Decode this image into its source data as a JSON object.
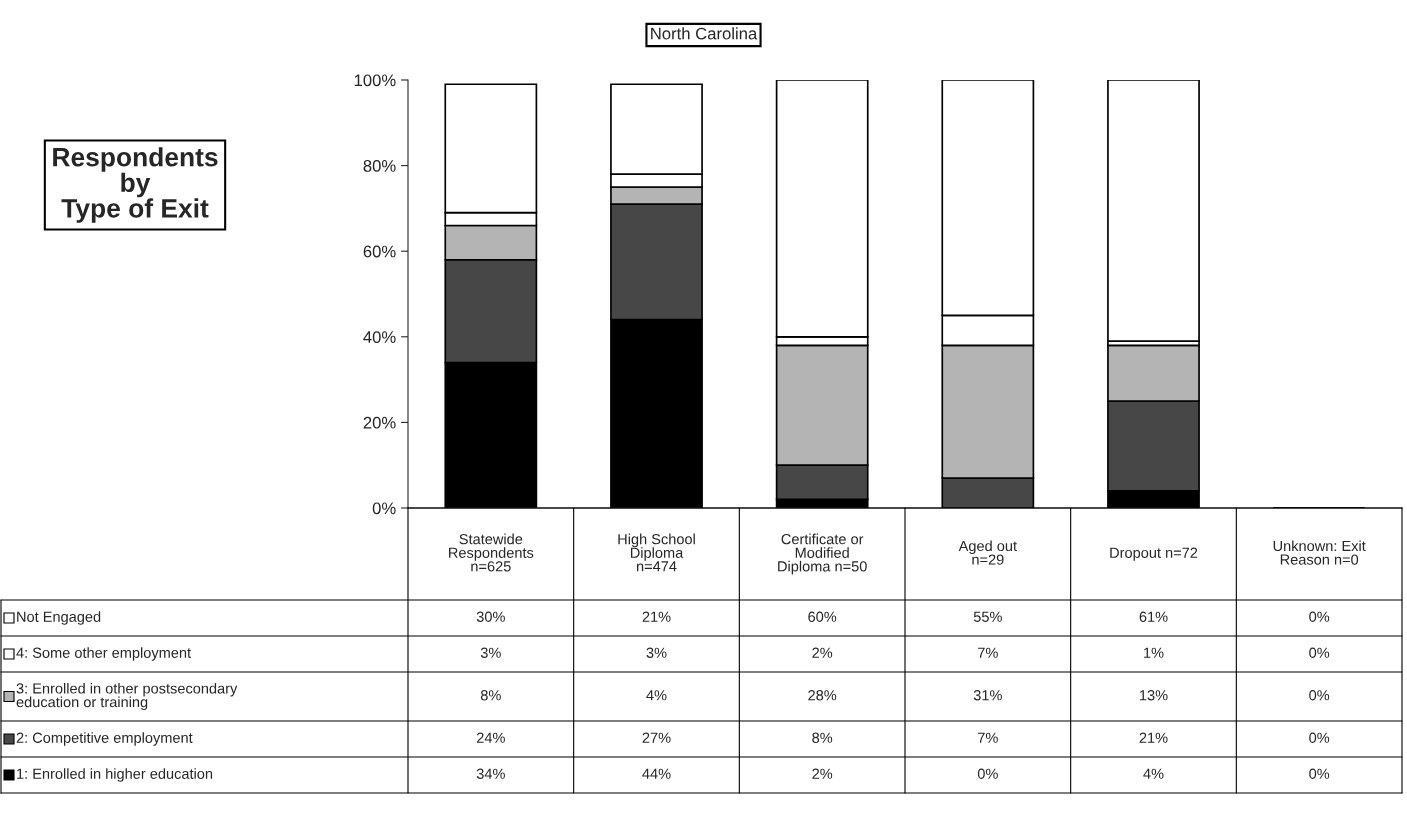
{
  "chart_data": {
    "type": "bar",
    "stacked": true,
    "title": "North Carolina",
    "annotations": [
      "Respondents\nby\nType of Exit"
    ],
    "categories": [
      "Statewide\nRespondents\nn=625",
      "High School\nDiploma\nn=474",
      "Certificate or\nModified\nDiploma n=50",
      "Aged out\nn=29",
      "Dropout n=72",
      "Unknown: Exit\nReason n=0"
    ],
    "ylim": [
      0,
      100
    ],
    "yticks": [
      {
        "value": 0,
        "label": "0%"
      },
      {
        "value": 20,
        "label": "20%"
      },
      {
        "value": 40,
        "label": "40%"
      },
      {
        "value": 60,
        "label": "60%"
      },
      {
        "value": 80,
        "label": "80%"
      },
      {
        "value": 100,
        "label": "100%"
      }
    ],
    "legend": "bottom left",
    "series": [
      {
        "name": "1: Enrolled in higher education",
        "color": "#000000",
        "values": [
          34,
          44,
          2,
          0,
          4,
          0
        ],
        "value_labels": [
          "34%",
          "44%",
          "2%",
          "0%",
          "4%",
          "0%"
        ]
      },
      {
        "name": "2: Competitive employment",
        "color": "#474747",
        "values": [
          24,
          27,
          8,
          7,
          21,
          0
        ],
        "value_labels": [
          "24%",
          "27%",
          "8%",
          "7%",
          "21%",
          "0%"
        ]
      },
      {
        "name": "3: Enrolled in other postsecondary\neducation or training",
        "color": "#b4b4b4",
        "values": [
          8,
          4,
          28,
          31,
          13,
          0
        ],
        "value_labels": [
          "8%",
          "4%",
          "28%",
          "31%",
          "13%",
          "0%"
        ]
      },
      {
        "name": "4: Some other employment",
        "color": "#ffffff",
        "values": [
          3,
          3,
          2,
          7,
          1,
          0
        ],
        "value_labels": [
          "3%",
          "3%",
          "2%",
          "7%",
          "1%",
          "0%"
        ]
      },
      {
        "name": "Not Engaged",
        "color": "#ffffff",
        "values": [
          30,
          21,
          60,
          55,
          61,
          0
        ],
        "value_labels": [
          "30%",
          "21%",
          "60%",
          "55%",
          "61%",
          "0%"
        ]
      }
    ]
  }
}
